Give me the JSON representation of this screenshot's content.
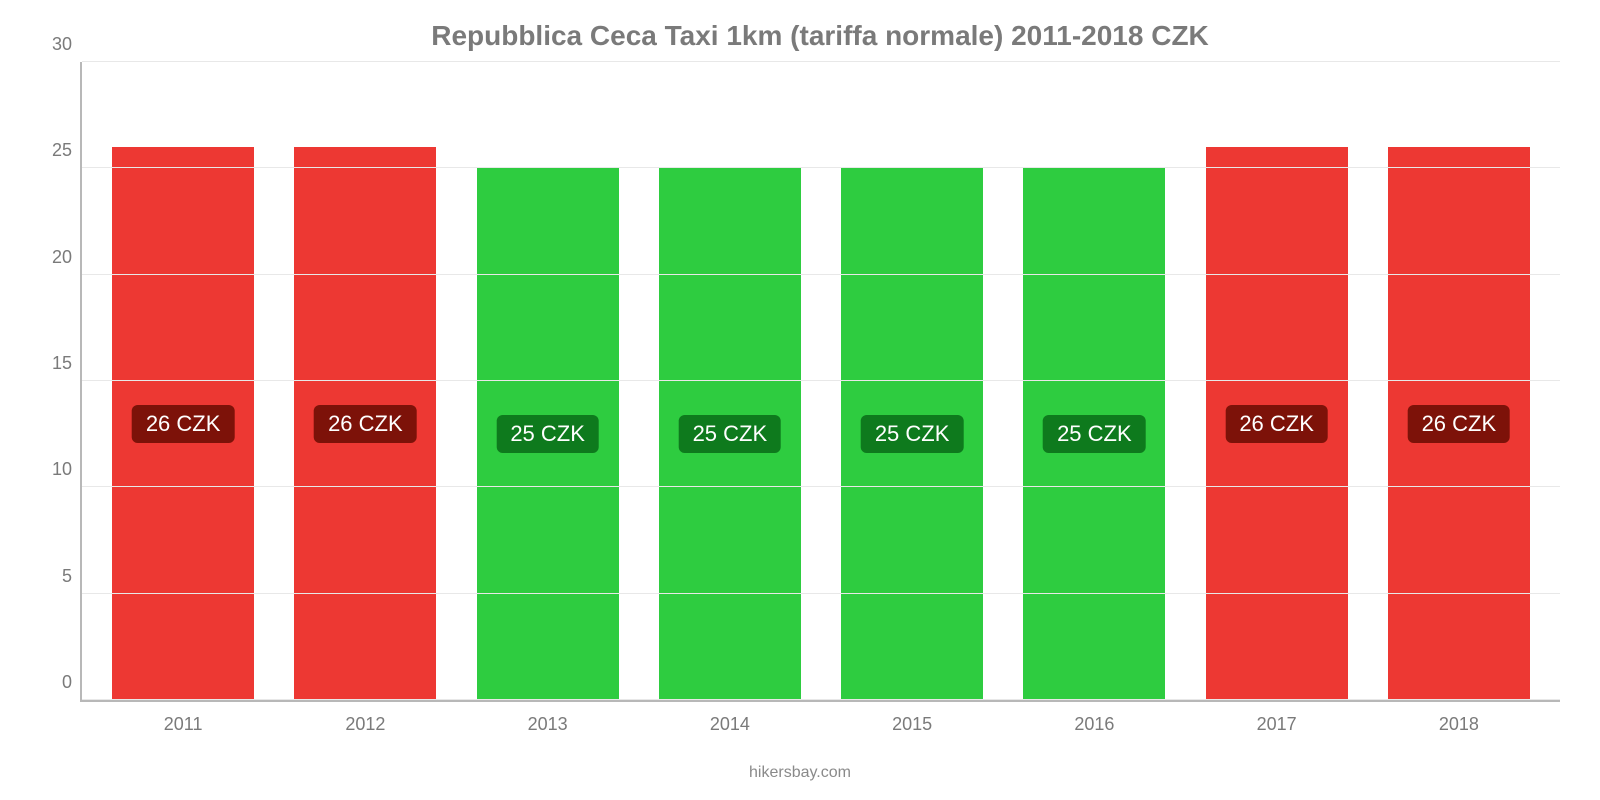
{
  "chart": {
    "type": "bar",
    "title": "Repubblica Ceca Taxi 1km (tariffa normale) 2011-2018 CZK",
    "title_color": "#7a7a7a",
    "title_fontsize": 28,
    "background_color": "#ffffff",
    "axis_color": "#b8b8b8",
    "grid_color": "#e8e8e8",
    "text_color": "#7a7a7a",
    "ylim": [
      0,
      30
    ],
    "yticks": [
      0,
      5,
      10,
      15,
      20,
      25,
      30
    ],
    "ytick_fontsize": 18,
    "xtick_fontsize": 18,
    "bar_width": 0.78,
    "bars": [
      {
        "category": "2011",
        "value": 26,
        "label": "26 CZK",
        "fill": "#ed3833",
        "label_bg": "#7d1209"
      },
      {
        "category": "2012",
        "value": 26,
        "label": "26 CZK",
        "fill": "#ed3833",
        "label_bg": "#7d1209"
      },
      {
        "category": "2013",
        "value": 25,
        "label": "25 CZK",
        "fill": "#2ecc40",
        "label_bg": "#0e7a1d"
      },
      {
        "category": "2014",
        "value": 25,
        "label": "25 CZK",
        "fill": "#2ecc40",
        "label_bg": "#0e7a1d"
      },
      {
        "category": "2015",
        "value": 25,
        "label": "25 CZK",
        "fill": "#2ecc40",
        "label_bg": "#0e7a1d"
      },
      {
        "category": "2016",
        "value": 25,
        "label": "25 CZK",
        "fill": "#2ecc40",
        "label_bg": "#0e7a1d"
      },
      {
        "category": "2017",
        "value": 26,
        "label": "26 CZK",
        "fill": "#ed3833",
        "label_bg": "#7d1209"
      },
      {
        "category": "2018",
        "value": 26,
        "label": "26 CZK",
        "fill": "#ed3833",
        "label_bg": "#7d1209"
      }
    ],
    "label_text_color": "#ffffff",
    "label_fontsize": 22,
    "footer": "hikersbay.com",
    "footer_color": "#8a8a8a"
  }
}
